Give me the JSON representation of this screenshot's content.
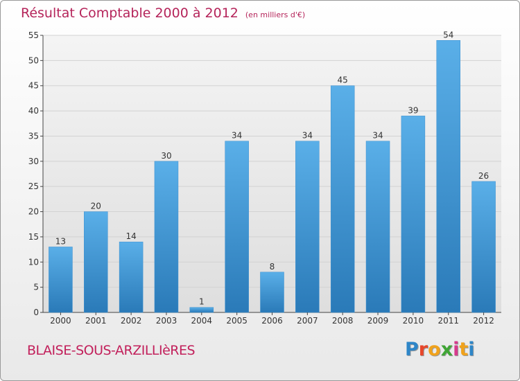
{
  "title": "Résultat Comptable 2000 à 2012",
  "subtitle": "(en milliers d'€)",
  "commune": "BLAISE-SOUS-ARZILLIèRES",
  "logo": {
    "letters": [
      "P",
      "r",
      "o",
      "x",
      "i",
      "t",
      "i"
    ],
    "colors": [
      "#2e86c8",
      "#e8462a",
      "#f0a21c",
      "#3fa535",
      "#d63a8c",
      "#f0a21c",
      "#2e86c8"
    ]
  },
  "colors": {
    "bar_light": "#5aafe8",
    "bar_dark": "#2a7ab8",
    "title": "#b5245a"
  },
  "chart_data": {
    "type": "bar",
    "categories": [
      "2000",
      "2001",
      "2002",
      "2003",
      "2004",
      "2005",
      "2006",
      "2007",
      "2008",
      "2009",
      "2010",
      "2011",
      "2012"
    ],
    "values": [
      13,
      20,
      14,
      30,
      1,
      34,
      8,
      34,
      45,
      34,
      39,
      54,
      26
    ],
    "data_labels": [
      "13",
      "20",
      "14",
      "30",
      "1",
      "34",
      "8",
      "34",
      "45",
      "34",
      "39",
      "54",
      "26"
    ],
    "yticks": [
      "0",
      "5",
      "10",
      "15",
      "20",
      "25",
      "30",
      "35",
      "40",
      "45",
      "50",
      "55"
    ],
    "ylim": [
      0,
      55
    ],
    "grid": true,
    "legend": "none"
  }
}
